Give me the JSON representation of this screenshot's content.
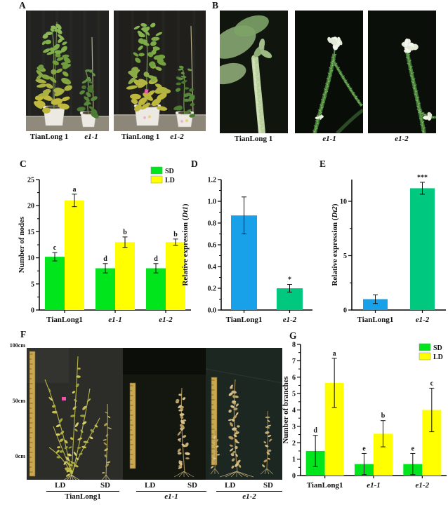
{
  "panels": {
    "A": {
      "label": "A",
      "photos": [
        {
          "left_label": "TianLong 1",
          "right_label": "e1-1"
        },
        {
          "left_label": "TianLong 1",
          "right_label": "e1-2"
        }
      ]
    },
    "B": {
      "label": "B",
      "photos": [
        {
          "label": "TianLong 1"
        },
        {
          "label": "e1-1"
        },
        {
          "label": "e1-2"
        }
      ]
    },
    "C": {
      "label": "C"
    },
    "D": {
      "label": "D"
    },
    "E": {
      "label": "E"
    },
    "F": {
      "label": "F",
      "scale_labels": [
        "100cm",
        "50cm",
        "0cm"
      ],
      "groups": [
        {
          "left": "LD",
          "right": "SD",
          "name": "TianLong1"
        },
        {
          "left": "LD",
          "right": "SD",
          "name": "e1-1"
        },
        {
          "left": "LD",
          "right": "SD",
          "name": "e1-2"
        }
      ]
    },
    "G": {
      "label": "G"
    }
  },
  "chart_data": [
    {
      "id": "C",
      "type": "bar",
      "ylabel": [
        {
          "text": "Number of nodes",
          "italic": false
        }
      ],
      "ylim": [
        0,
        25
      ],
      "yticks": [
        0,
        5,
        10,
        15,
        20,
        25
      ],
      "ytick_labels": [
        "0",
        "5",
        "10",
        "15",
        "20",
        "25"
      ],
      "categories": [
        {
          "text": "TianLong1",
          "italic": false
        },
        {
          "text": "e1-1",
          "italic": true
        },
        {
          "text": "e1-2",
          "italic": true
        }
      ],
      "series": [
        {
          "name": "SD",
          "color": "#00E51C",
          "values": [
            10.2,
            8,
            8
          ],
          "errors": [
            0.8,
            0.9,
            0.9
          ],
          "labels": [
            "c",
            "d",
            "d"
          ]
        },
        {
          "name": "LD",
          "color": "#FFFF00",
          "values": [
            21,
            13,
            13
          ],
          "errors": [
            1.2,
            1,
            0.6
          ],
          "labels": [
            "a",
            "b",
            "b"
          ]
        }
      ],
      "legend": [
        {
          "label": "SD",
          "color": "#00E51C"
        },
        {
          "label": "LD",
          "color": "#FFFF00"
        }
      ],
      "legend_position": "top-right",
      "grid": false
    },
    {
      "id": "D",
      "type": "bar",
      "ylabel": [
        {
          "text": "Relative expression (",
          "italic": false
        },
        {
          "text": "Dt1",
          "italic": true
        },
        {
          "text": ")",
          "italic": false
        }
      ],
      "ylim": [
        0,
        1.2
      ],
      "yticks": [
        0,
        0.2,
        0.4,
        0.6,
        0.8,
        1,
        1.2
      ],
      "ytick_labels": [
        "0.0",
        "0.2",
        "0.4",
        "0.6",
        "0.8",
        "1.0",
        "1.2"
      ],
      "categories": [
        {
          "text": "TianLong1",
          "italic": false
        },
        {
          "text": "e1-2",
          "italic": true
        }
      ],
      "series": [
        {
          "name": "",
          "colors": [
            "#18A0E8",
            "#00C87E"
          ],
          "values": [
            0.87,
            0.2
          ],
          "errors": [
            0.17,
            0.035
          ],
          "labels": [
            "",
            "*"
          ]
        }
      ],
      "grid": false
    },
    {
      "id": "E",
      "type": "bar",
      "ylabel": [
        {
          "text": "Relative expression (",
          "italic": false
        },
        {
          "text": "Dt2",
          "italic": true
        },
        {
          "text": ")",
          "italic": false
        }
      ],
      "ylim": [
        0,
        12
      ],
      "yticks": [
        0,
        5,
        10
      ],
      "ytick_labels": [
        "0",
        "5",
        "10"
      ],
      "categories": [
        {
          "text": "TianLong1",
          "italic": false
        },
        {
          "text": "e1-2",
          "italic": true
        }
      ],
      "series": [
        {
          "name": "",
          "colors": [
            "#18A0E8",
            "#00C87E"
          ],
          "values": [
            1,
            11.2
          ],
          "errors": [
            0.4,
            0.55
          ],
          "labels": [
            "",
            "***"
          ]
        }
      ],
      "grid": false
    },
    {
      "id": "G",
      "type": "bar",
      "ylabel": [
        {
          "text": "Number of branches",
          "italic": false
        }
      ],
      "ylim": [
        0,
        8
      ],
      "yticks": [
        0,
        1,
        2,
        3,
        4,
        5,
        6,
        7,
        8
      ],
      "ytick_labels": [
        "0",
        "1",
        "2",
        "3",
        "4",
        "5",
        "6",
        "7",
        "8"
      ],
      "categories": [
        {
          "text": "TianLong1",
          "italic": false
        },
        {
          "text": "e1-1",
          "italic": true
        },
        {
          "text": "e1-2",
          "italic": true
        }
      ],
      "series": [
        {
          "name": "SD",
          "color": "#00E51C",
          "values": [
            1.5,
            0.7,
            0.7
          ],
          "errors": [
            0.95,
            0.65,
            0.65
          ],
          "labels": [
            "d",
            "e",
            "e"
          ]
        },
        {
          "name": "LD",
          "color": "#FFFF00",
          "values": [
            5.65,
            2.55,
            4
          ],
          "errors": [
            1.5,
            0.8,
            1.33
          ],
          "labels": [
            "a",
            "b",
            "c"
          ]
        }
      ],
      "legend": [
        {
          "label": "SD",
          "color": "#00E51C"
        },
        {
          "label": "LD",
          "color": "#FFFF00"
        }
      ],
      "legend_position": "top-right",
      "grid": false
    }
  ]
}
